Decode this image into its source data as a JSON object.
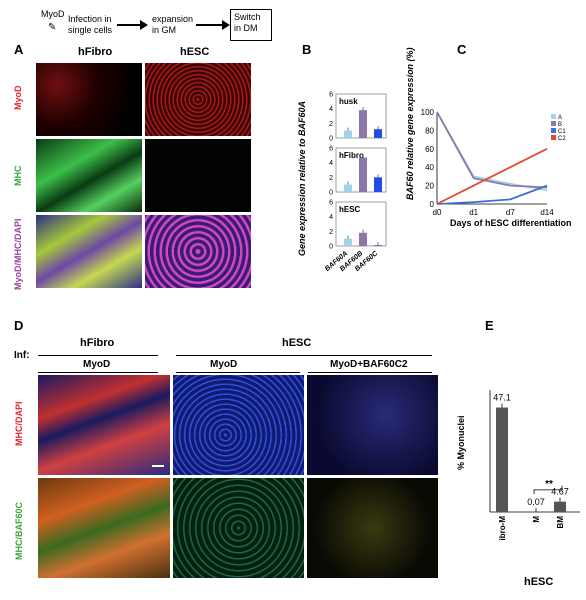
{
  "schema": {
    "step1_top": "MyoD",
    "step1_main": "Infection in single cells",
    "step2": "expansion in GM",
    "step3": "Switch in DM"
  },
  "panelA": {
    "letter": "A",
    "col1": "hFibro",
    "col2": "hESC",
    "rows": [
      "MyoD",
      "MHC",
      "MyoD/MHC/DAPI"
    ]
  },
  "panelB": {
    "letter": "B",
    "ylabel": "Gene expression relative to BAF60A",
    "yticks": [
      "6",
      "4",
      "2",
      "0"
    ],
    "subplots": [
      {
        "title": "husk",
        "values": [
          1.0,
          3.8,
          1.2
        ]
      },
      {
        "title": "hFibro",
        "values": [
          1.0,
          4.7,
          2.0
        ]
      },
      {
        "title": "hESC",
        "values": [
          1.0,
          1.8,
          0.1
        ]
      }
    ],
    "categories": [
      "BAF60A",
      "BAF60B",
      "BAF60C"
    ]
  },
  "panelC": {
    "letter": "C",
    "ylabel": "BAF60 relative gene expression (%)",
    "xlabel": "Days of hESC differentiation",
    "xticks": [
      "d0",
      "d1",
      "d7",
      "d14"
    ],
    "yticks": [
      "100",
      "80",
      "60",
      "40",
      "20",
      "0"
    ],
    "legend": [
      "A",
      "B",
      "C1",
      "C2"
    ]
  },
  "panelD": {
    "letter": "D",
    "inf": "Inf:",
    "group1": "hFibro",
    "group2": "hESC",
    "sub1": "MyoD",
    "sub2": "MyoD",
    "sub3": "MyoD+BAF60C2",
    "rowTop": "MHC/DAPI",
    "rowBottom": "MHC/BAF60C"
  },
  "panelE": {
    "letter": "E",
    "ylabel": "% Myonuclei",
    "labels": [
      "hFibro-M",
      "M",
      "BM"
    ],
    "values_text": [
      "47.1",
      "0.07",
      "4.67"
    ],
    "group": "hESC",
    "sig": "**"
  },
  "chart_data": [
    {
      "type": "bar",
      "title": "husk",
      "categories": [
        "BAF60A",
        "BAF60B",
        "BAF60C"
      ],
      "values": [
        1.0,
        3.8,
        1.2
      ],
      "ylim": [
        0,
        6
      ]
    },
    {
      "type": "bar",
      "title": "hFibro",
      "categories": [
        "BAF60A",
        "BAF60B",
        "BAF60C"
      ],
      "values": [
        1.0,
        4.7,
        2.0
      ],
      "ylim": [
        0,
        6
      ]
    },
    {
      "type": "bar",
      "title": "hESC",
      "categories": [
        "BAF60A",
        "BAF60B",
        "BAF60C"
      ],
      "values": [
        1.0,
        1.8,
        0.1
      ],
      "ylim": [
        0,
        6
      ]
    },
    {
      "type": "line",
      "x": [
        "d0",
        "d1",
        "d7",
        "d14"
      ],
      "series": [
        {
          "name": "A",
          "values": [
            100,
            30,
            22,
            15
          ]
        },
        {
          "name": "B",
          "values": [
            100,
            28,
            20,
            18
          ]
        },
        {
          "name": "C1",
          "values": [
            0,
            2,
            5,
            20
          ]
        },
        {
          "name": "C2",
          "values": [
            0,
            20,
            40,
            60
          ]
        }
      ],
      "ylabel": "BAF60 relative gene expression (%)",
      "xlabel": "Days of hESC differentiation",
      "ylim": [
        0,
        100
      ],
      "colors": {
        "A": "#9fd4e6",
        "B": "#8b78a8",
        "C1": "#3d6fd6",
        "C2": "#e24a2a"
      }
    },
    {
      "type": "bar",
      "categories": [
        "hFibro-M",
        "M",
        "BM"
      ],
      "values": [
        47.1,
        0.07,
        4.67
      ],
      "ylabel": "% Myonuclei",
      "ylim": [
        0,
        55
      ]
    }
  ]
}
